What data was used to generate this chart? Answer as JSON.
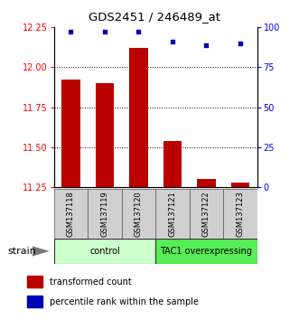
{
  "title": "GDS2451 / 246489_at",
  "samples": [
    "GSM137118",
    "GSM137119",
    "GSM137120",
    "GSM137121",
    "GSM137122",
    "GSM137123"
  ],
  "bar_values": [
    11.92,
    11.9,
    12.12,
    11.54,
    11.3,
    11.28
  ],
  "percentile_values": [
    97,
    97,
    97,
    91,
    89,
    90
  ],
  "bar_color": "#bb0000",
  "dot_color": "#0000bb",
  "ylim_left": [
    11.25,
    12.25
  ],
  "ylim_right": [
    0,
    100
  ],
  "yticks_left": [
    11.25,
    11.5,
    11.75,
    12.0,
    12.25
  ],
  "yticks_right": [
    0,
    25,
    50,
    75,
    100
  ],
  "grid_lines": [
    11.5,
    11.75,
    12.0
  ],
  "groups": [
    {
      "label": "control",
      "indices": [
        0,
        1,
        2
      ],
      "color": "#ccffcc"
    },
    {
      "label": "TAC1 overexpressing",
      "indices": [
        3,
        4,
        5
      ],
      "color": "#55ee55"
    }
  ],
  "group_label": "strain",
  "legend_items": [
    {
      "color": "#bb0000",
      "label": "transformed count"
    },
    {
      "color": "#0000bb",
      "label": "percentile rank within the sample"
    }
  ],
  "bar_bottom": 11.25,
  "bar_width": 0.55,
  "fig_width": 3.41,
  "fig_height": 3.54,
  "dpi": 100
}
